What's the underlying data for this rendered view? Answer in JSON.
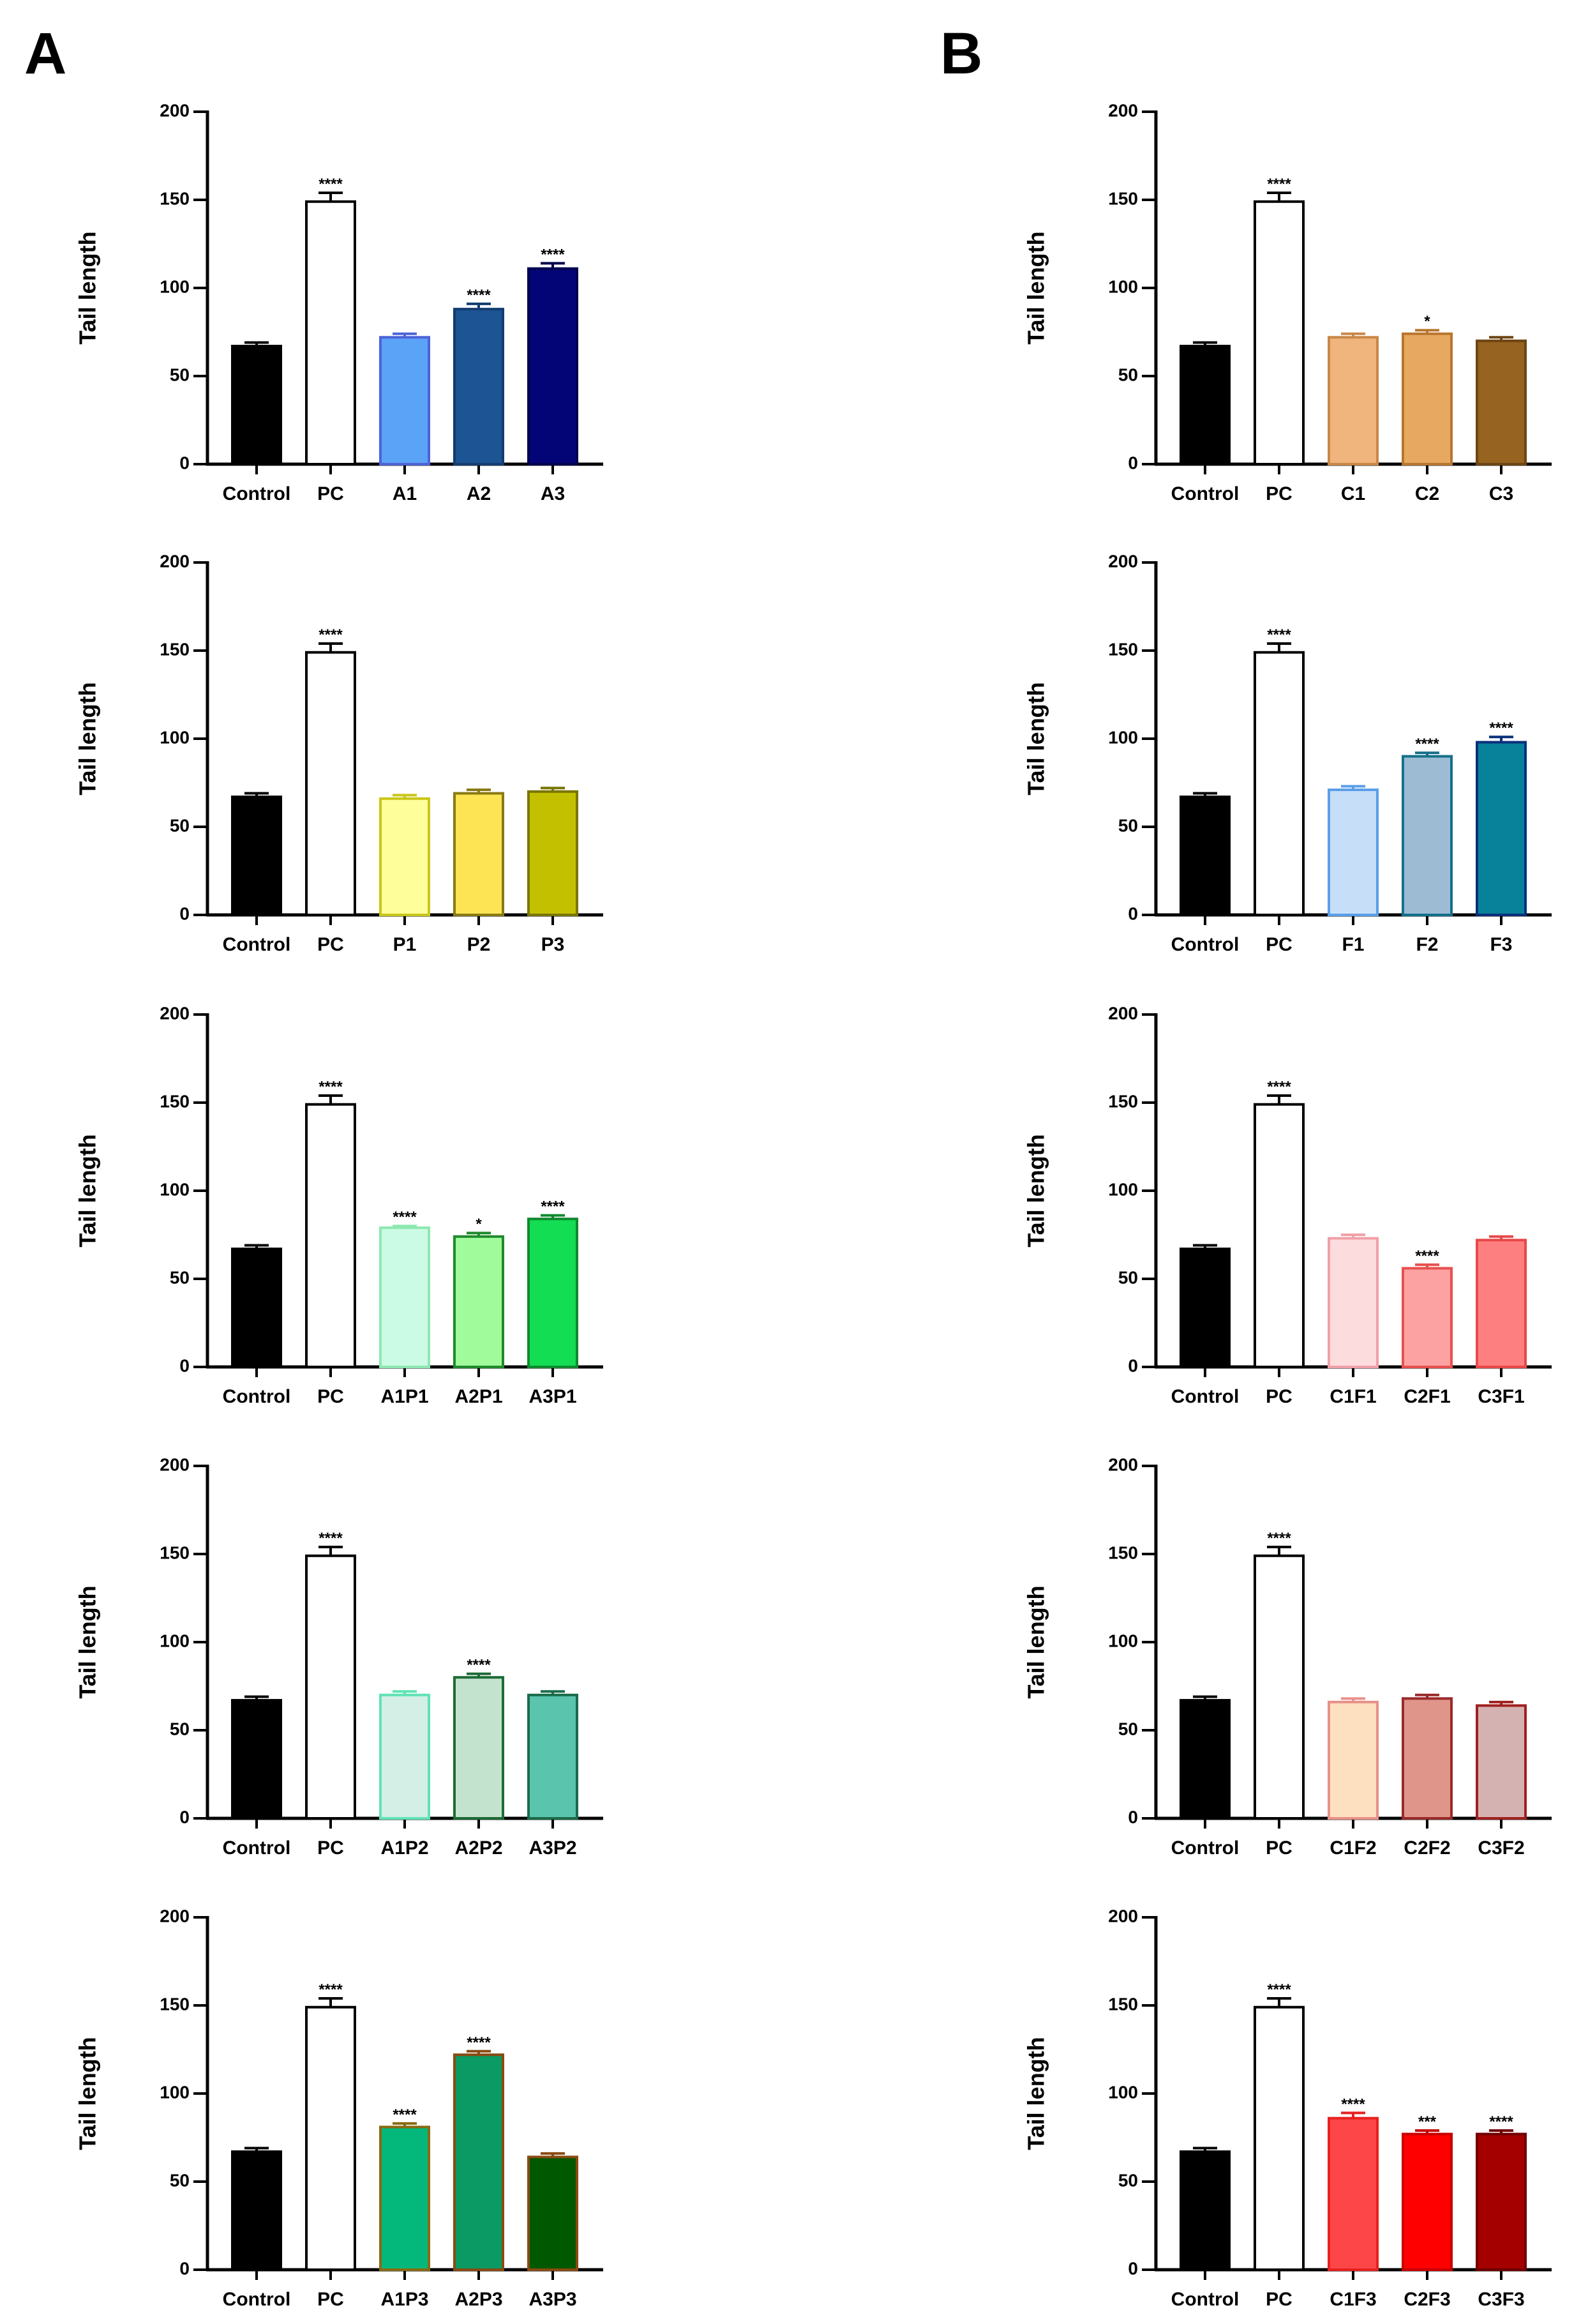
{
  "panels": {
    "left": "A",
    "right": "B"
  },
  "chart_data": [
    {
      "id": "A1",
      "type": "bar",
      "ylabel": "Tail length",
      "ylim": [
        0,
        200
      ],
      "yticks": [
        0,
        50,
        100,
        150,
        200
      ],
      "categories": [
        "Control",
        "PC",
        "A1",
        "A2",
        "A3"
      ],
      "values": [
        67,
        149,
        72,
        88,
        111
      ],
      "errors": [
        2,
        5,
        2,
        3,
        3
      ],
      "significance": [
        "",
        "****",
        "",
        "****",
        "****"
      ],
      "fill_colors": [
        "#000000",
        "#ffffff",
        "#5ba3f7",
        "#1c5494",
        "#030577"
      ],
      "edge_colors": [
        "#000000",
        "#000000",
        "#4d63d8",
        "#133d70",
        "#02024e"
      ]
    },
    {
      "id": "A2",
      "type": "bar",
      "ylabel": "Tail length",
      "ylim": [
        0,
        200
      ],
      "yticks": [
        0,
        50,
        100,
        150,
        200
      ],
      "categories": [
        "Control",
        "PC",
        "P1",
        "P2",
        "P3"
      ],
      "values": [
        67,
        149,
        66,
        69,
        70
      ],
      "errors": [
        2,
        5,
        2,
        2,
        2
      ],
      "significance": [
        "",
        "****",
        "",
        "",
        ""
      ],
      "fill_colors": [
        "#000000",
        "#ffffff",
        "#fefe9a",
        "#fde454",
        "#c3c000"
      ],
      "edge_colors": [
        "#000000",
        "#000000",
        "#c9c61a",
        "#8a7a14",
        "#7a7600"
      ]
    },
    {
      "id": "A3",
      "type": "bar",
      "ylabel": "Tail length",
      "ylim": [
        0,
        200
      ],
      "yticks": [
        0,
        50,
        100,
        150,
        200
      ],
      "categories": [
        "Control",
        "PC",
        "A1P1",
        "A2P1",
        "A3P1"
      ],
      "values": [
        67,
        149,
        79,
        74,
        84
      ],
      "errors": [
        2,
        5,
        1,
        2,
        2
      ],
      "significance": [
        "",
        "****",
        "****",
        "*",
        "****"
      ],
      "fill_colors": [
        "#000000",
        "#ffffff",
        "#cbfbe4",
        "#a0fb9b",
        "#13dd52"
      ],
      "edge_colors": [
        "#000000",
        "#000000",
        "#8ee8b0",
        "#1f8a2c",
        "#0f8a2e"
      ]
    },
    {
      "id": "A4",
      "type": "bar",
      "ylabel": "Tail length",
      "ylim": [
        0,
        200
      ],
      "yticks": [
        0,
        50,
        100,
        150,
        200
      ],
      "categories": [
        "Control",
        "PC",
        "A1P2",
        "A2P2",
        "A3P2"
      ],
      "values": [
        67,
        149,
        70,
        80,
        70
      ],
      "errors": [
        2,
        5,
        2,
        2,
        2
      ],
      "significance": [
        "",
        "****",
        "",
        "****",
        ""
      ],
      "fill_colors": [
        "#000000",
        "#ffffff",
        "#d4efe6",
        "#c3e3cf",
        "#5ac4ad"
      ],
      "edge_colors": [
        "#000000",
        "#000000",
        "#5fe3b4",
        "#1d6b35",
        "#1a6b4a"
      ]
    },
    {
      "id": "A5",
      "type": "bar",
      "ylabel": "Tail length",
      "ylim": [
        0,
        200
      ],
      "yticks": [
        0,
        50,
        100,
        150,
        200
      ],
      "categories": [
        "Control",
        "PC",
        "A1P3",
        "A2P3",
        "A3P3"
      ],
      "values": [
        67,
        149,
        81,
        122,
        64
      ],
      "errors": [
        2,
        5,
        2,
        2,
        2
      ],
      "significance": [
        "",
        "****",
        "****",
        "****",
        ""
      ],
      "fill_colors": [
        "#000000",
        "#ffffff",
        "#04b87c",
        "#0b9a63",
        "#005800"
      ],
      "edge_colors": [
        "#000000",
        "#000000",
        "#8a6a12",
        "#8a4a12",
        "#8a4a12"
      ]
    },
    {
      "id": "B1",
      "type": "bar",
      "ylabel": "Tail length",
      "ylim": [
        0,
        200
      ],
      "yticks": [
        0,
        50,
        100,
        150,
        200
      ],
      "categories": [
        "Control",
        "PC",
        "C1",
        "C2",
        "C3"
      ],
      "values": [
        67,
        149,
        72,
        74,
        70
      ],
      "errors": [
        2,
        5,
        2,
        2,
        2
      ],
      "significance": [
        "",
        "****",
        "",
        "*",
        ""
      ],
      "fill_colors": [
        "#000000",
        "#ffffff",
        "#f0b47d",
        "#e7a962",
        "#966320"
      ],
      "edge_colors": [
        "#000000",
        "#000000",
        "#c88848",
        "#b9762e",
        "#6e4514"
      ]
    },
    {
      "id": "B2",
      "type": "bar",
      "ylabel": "Tail length",
      "ylim": [
        0,
        200
      ],
      "yticks": [
        0,
        50,
        100,
        150,
        200
      ],
      "categories": [
        "Control",
        "PC",
        "F1",
        "F2",
        "F3"
      ],
      "values": [
        67,
        149,
        71,
        90,
        98
      ],
      "errors": [
        2,
        5,
        2,
        2,
        3
      ],
      "significance": [
        "",
        "****",
        "",
        "****",
        "****"
      ],
      "fill_colors": [
        "#000000",
        "#ffffff",
        "#c7def9",
        "#9dbcd4",
        "#08819b"
      ],
      "edge_colors": [
        "#000000",
        "#000000",
        "#5a9ee8",
        "#15708a",
        "#08307a"
      ]
    },
    {
      "id": "B3",
      "type": "bar",
      "ylabel": "Tail length",
      "ylim": [
        0,
        200
      ],
      "yticks": [
        0,
        50,
        100,
        150,
        200
      ],
      "categories": [
        "Control",
        "PC",
        "C1F1",
        "C2F1",
        "C3F1"
      ],
      "values": [
        67,
        149,
        73,
        56,
        72
      ],
      "errors": [
        2,
        5,
        2,
        2,
        2
      ],
      "significance": [
        "",
        "****",
        "",
        "****",
        ""
      ],
      "fill_colors": [
        "#000000",
        "#ffffff",
        "#fddcde",
        "#fca2a2",
        "#fe7f7f"
      ],
      "edge_colors": [
        "#000000",
        "#000000",
        "#f0a0a8",
        "#e85050",
        "#e84848"
      ]
    },
    {
      "id": "B4",
      "type": "bar",
      "ylabel": "Tail length",
      "ylim": [
        0,
        200
      ],
      "yticks": [
        0,
        50,
        100,
        150,
        200
      ],
      "categories": [
        "Control",
        "PC",
        "C1F2",
        "C2F2",
        "C3F2"
      ],
      "values": [
        67,
        149,
        66,
        68,
        64
      ],
      "errors": [
        2,
        5,
        2,
        2,
        2
      ],
      "significance": [
        "",
        "****",
        "",
        "",
        ""
      ],
      "fill_colors": [
        "#000000",
        "#ffffff",
        "#fde0c0",
        "#df958a",
        "#d5b2b2"
      ],
      "edge_colors": [
        "#000000",
        "#000000",
        "#e8908a",
        "#9a2a2a",
        "#a02020"
      ]
    },
    {
      "id": "B5",
      "type": "bar",
      "ylabel": "Tail length",
      "ylim": [
        0,
        200
      ],
      "yticks": [
        0,
        50,
        100,
        150,
        200
      ],
      "categories": [
        "Control",
        "PC",
        "C1F3",
        "C2F3",
        "C3F3"
      ],
      "values": [
        67,
        149,
        86,
        77,
        77
      ],
      "errors": [
        2,
        5,
        3,
        2,
        2
      ],
      "significance": [
        "",
        "****",
        "****",
        "***",
        "****"
      ],
      "fill_colors": [
        "#000000",
        "#ffffff",
        "#fd4647",
        "#fe0000",
        "#a40000"
      ],
      "edge_colors": [
        "#000000",
        "#000000",
        "#e82020",
        "#c80000",
        "#700000"
      ]
    }
  ]
}
